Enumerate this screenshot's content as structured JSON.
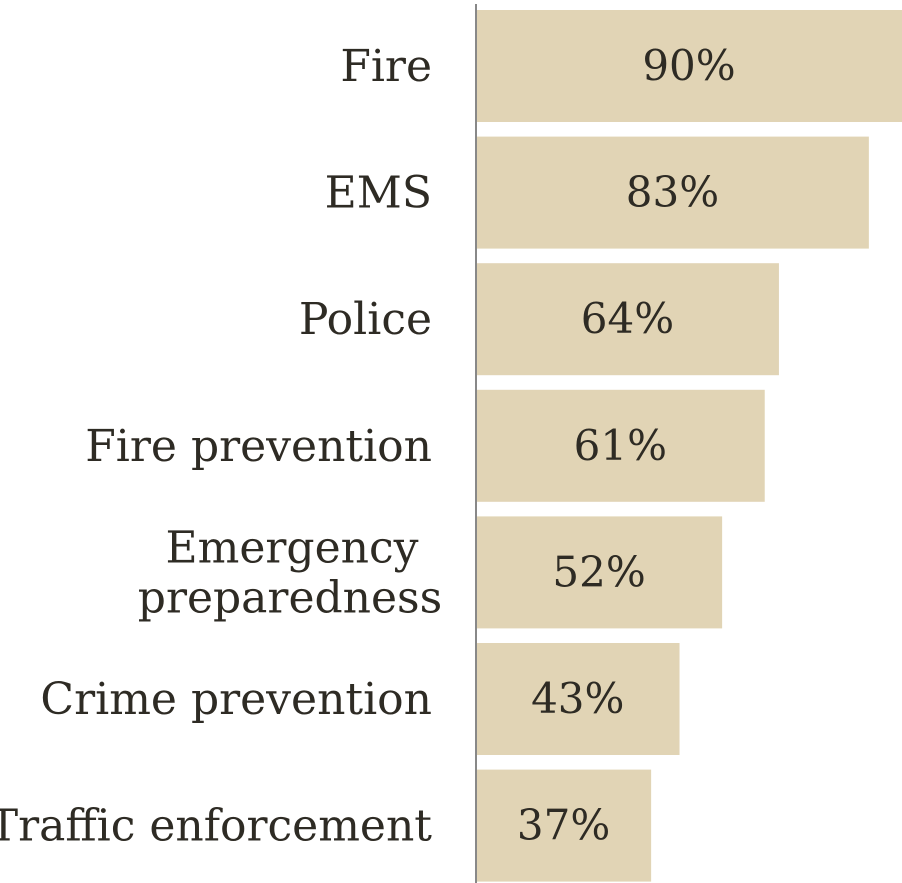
{
  "chart_data": {
    "type": "bar",
    "orientation": "horizontal",
    "categories": [
      [
        "Fire"
      ],
      [
        "EMS"
      ],
      [
        "Police"
      ],
      [
        "Fire prevention"
      ],
      [
        "Emergency",
        "preparedness"
      ],
      [
        "Crime prevention"
      ],
      [
        "Traffic enforcement"
      ]
    ],
    "values": [
      90,
      83,
      64,
      61,
      52,
      43,
      37
    ],
    "value_labels": [
      "90%",
      "83%",
      "64%",
      "61%",
      "52%",
      "43%",
      "37%"
    ],
    "xlim": [
      0,
      90
    ],
    "bar_color": "#e1d4b5",
    "axis_color": "#888888",
    "text_color": "#2e2b24",
    "grid": false,
    "legend": "none"
  }
}
